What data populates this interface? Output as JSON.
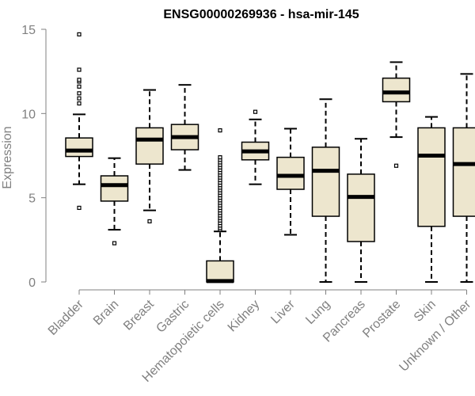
{
  "colors": {
    "box_fill": "#EDE6CE",
    "box_stroke": "#000000",
    "axis": "#808080",
    "title": "#000000"
  },
  "chart_data": {
    "type": "boxplot",
    "title": "ENSG00000269936 - hsa-mir-145",
    "xlabel": "",
    "ylabel": "Expression",
    "ylim": [
      0,
      15
    ],
    "yticks": [
      0,
      5,
      10,
      15
    ],
    "categories": [
      "Bladder",
      "Brain",
      "Breast",
      "Gastric",
      "Hematopoietic cells",
      "Kidney",
      "Liver",
      "Lung",
      "Pancreas",
      "Prostate",
      "Skin",
      "Unknown / Other"
    ],
    "boxes": [
      {
        "category": "Bladder",
        "whisker_low": 5.8,
        "q1": 7.45,
        "median": 7.8,
        "q3": 8.55,
        "whisker_high": 9.95,
        "outliers": [
          4.4,
          10.6,
          10.9,
          11.2,
          11.6,
          11.9,
          12.0,
          12.6,
          14.7
        ]
      },
      {
        "category": "Brain",
        "whisker_low": 3.1,
        "q1": 4.8,
        "median": 5.75,
        "q3": 6.3,
        "whisker_high": 7.35,
        "outliers": [
          2.3
        ]
      },
      {
        "category": "Breast",
        "whisker_low": 4.25,
        "q1": 7.0,
        "median": 8.45,
        "q3": 9.15,
        "whisker_high": 11.4,
        "outliers": [
          3.6
        ]
      },
      {
        "category": "Gastric",
        "whisker_low": 6.65,
        "q1": 7.85,
        "median": 8.6,
        "q3": 9.35,
        "whisker_high": 11.7,
        "outliers": []
      },
      {
        "category": "Hematopoietic cells",
        "whisker_low": 0,
        "q1": 0.0,
        "median": 0.05,
        "q3": 1.25,
        "whisker_high": 3.0,
        "outliers": [
          3.1,
          3.2,
          3.35,
          3.5,
          3.65,
          3.8,
          3.95,
          4.1,
          4.25,
          4.4,
          4.55,
          4.7,
          4.85,
          5.0,
          5.15,
          5.3,
          5.45,
          5.6,
          5.75,
          5.9,
          6.05,
          6.2,
          6.35,
          6.5,
          6.65,
          6.8,
          6.95,
          7.1,
          7.25,
          7.4,
          9.0
        ]
      },
      {
        "category": "Kidney",
        "whisker_low": 5.8,
        "q1": 7.25,
        "median": 7.75,
        "q3": 8.3,
        "whisker_high": 9.65,
        "outliers": [
          10.1
        ]
      },
      {
        "category": "Liver",
        "whisker_low": 2.8,
        "q1": 5.5,
        "median": 6.3,
        "q3": 7.4,
        "whisker_high": 9.1,
        "outliers": []
      },
      {
        "category": "Lung",
        "whisker_low": 0,
        "q1": 3.9,
        "median": 6.6,
        "q3": 8.0,
        "whisker_high": 10.85,
        "outliers": []
      },
      {
        "category": "Pancreas",
        "whisker_low": 0,
        "q1": 2.4,
        "median": 5.05,
        "q3": 6.4,
        "whisker_high": 8.5,
        "outliers": []
      },
      {
        "category": "Prostate",
        "whisker_low": 8.6,
        "q1": 10.7,
        "median": 11.25,
        "q3": 12.1,
        "whisker_high": 13.05,
        "outliers": [
          6.9
        ]
      },
      {
        "category": "Skin",
        "whisker_low": 0,
        "q1": 3.3,
        "median": 7.5,
        "q3": 9.15,
        "whisker_high": 9.8,
        "outliers": []
      },
      {
        "category": "Unknown / Other",
        "whisker_low": 0,
        "q1": 3.9,
        "median": 7.0,
        "q3": 9.15,
        "whisker_high": 12.35,
        "outliers": []
      }
    ]
  }
}
